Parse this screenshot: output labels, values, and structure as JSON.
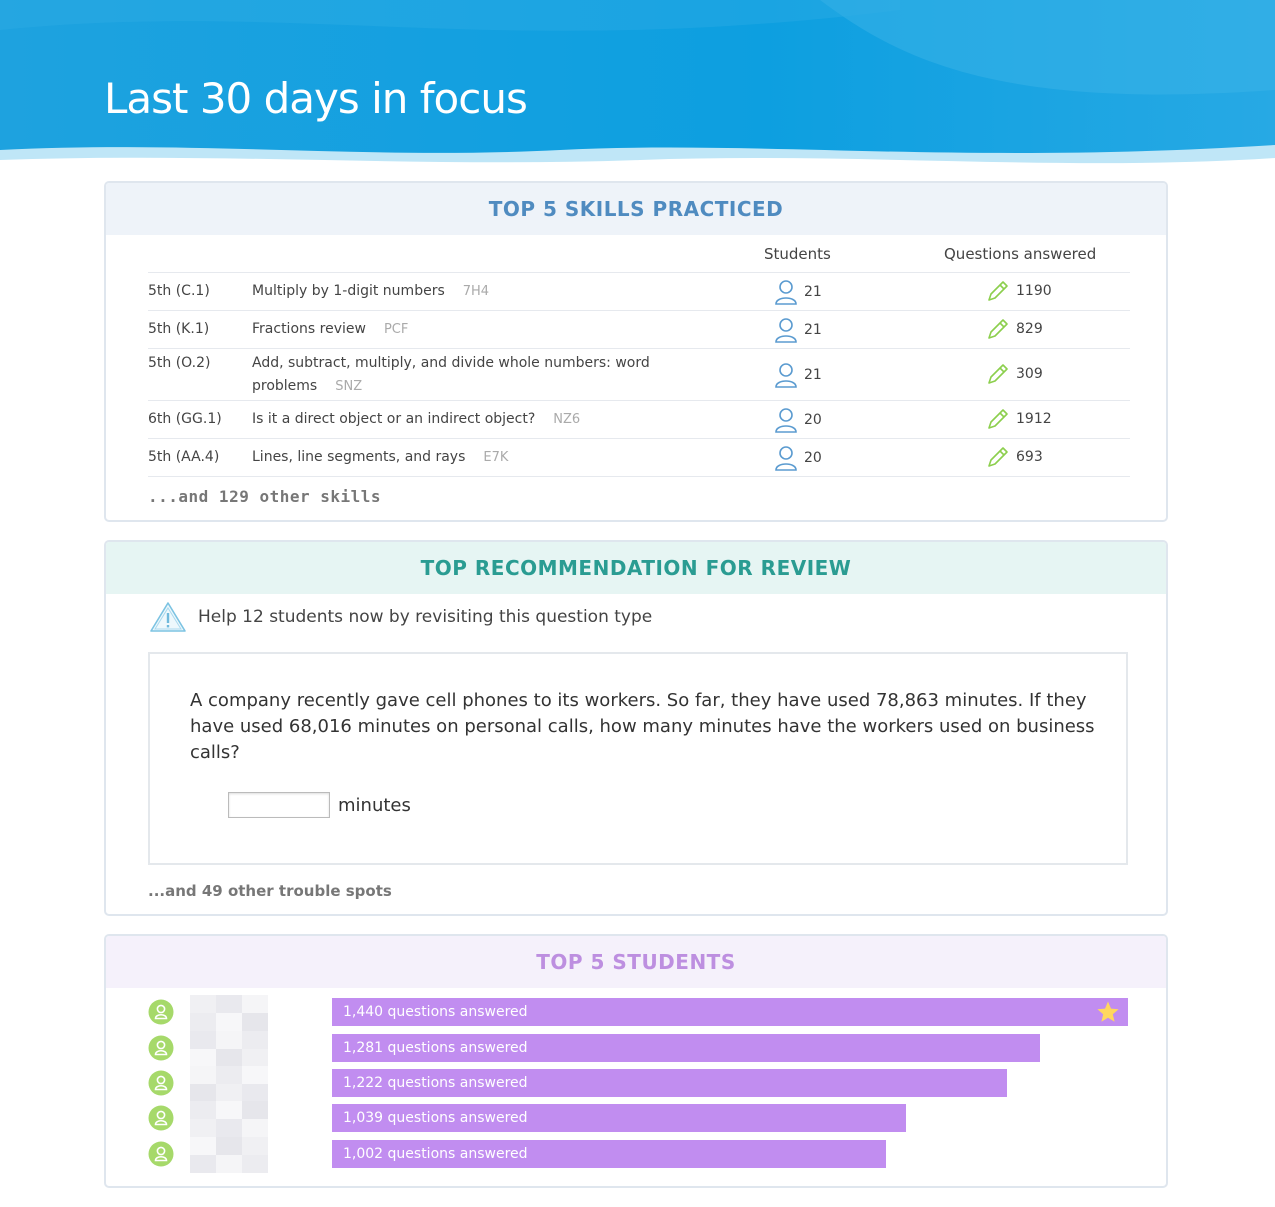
{
  "header": {
    "title": "Last 30 days in focus"
  },
  "skills": {
    "heading": "TOP 5 SKILLS PRACTICED",
    "col_students": "Students",
    "col_questions": "Questions answered",
    "rows": [
      {
        "grade": "5th (C.1)",
        "skill": "Multiply by 1-digit numbers",
        "code": "7H4",
        "students": "21",
        "questions": "1190"
      },
      {
        "grade": "5th (K.1)",
        "skill": "Fractions review",
        "code": "PCF",
        "students": "21",
        "questions": "829"
      },
      {
        "grade": "5th (O.2)",
        "skill": "Add, subtract, multiply, and divide whole numbers: word problems",
        "code": "SNZ",
        "students": "21",
        "questions": "309"
      },
      {
        "grade": "6th (GG.1)",
        "skill": "Is it a direct object or an indirect object?",
        "code": "NZ6",
        "students": "20",
        "questions": "1912"
      },
      {
        "grade": "5th (AA.4)",
        "skill": "Lines, line segments, and rays",
        "code": "E7K",
        "students": "20",
        "questions": "693"
      }
    ],
    "more": "...and 129 other skills"
  },
  "recommendation": {
    "heading": "TOP RECOMMENDATION FOR REVIEW",
    "help_text": "Help 12 students now by revisiting this question type",
    "question": "A company recently gave cell phones to its workers. So far, they have used 78,863 minutes. If they have used 68,016 minutes on personal calls, how many minutes have the workers used on business calls?",
    "answer_value": "",
    "answer_unit": "minutes",
    "more": "...and 49 other trouble spots"
  },
  "students": {
    "heading": "TOP 5 STUDENTS",
    "rows": [
      {
        "label": "1,440 questions answered",
        "count": 1440,
        "star": true
      },
      {
        "label": "1,281 questions answered",
        "count": 1281,
        "star": false
      },
      {
        "label": "1,222 questions answered",
        "count": 1222,
        "star": false
      },
      {
        "label": "1,039 questions answered",
        "count": 1039,
        "star": false
      },
      {
        "label": "1,002 questions answered",
        "count": 1002,
        "star": false
      }
    ]
  },
  "colors": {
    "header_blue": "#1aa6e2",
    "skills_accent": "#4f8bc0",
    "review_accent": "#2a9c92",
    "students_accent": "#bd8fe0",
    "bar_purple": "#c18df0",
    "avatar_green": "#a6d96a",
    "pencil_green": "#8ccf4d"
  }
}
